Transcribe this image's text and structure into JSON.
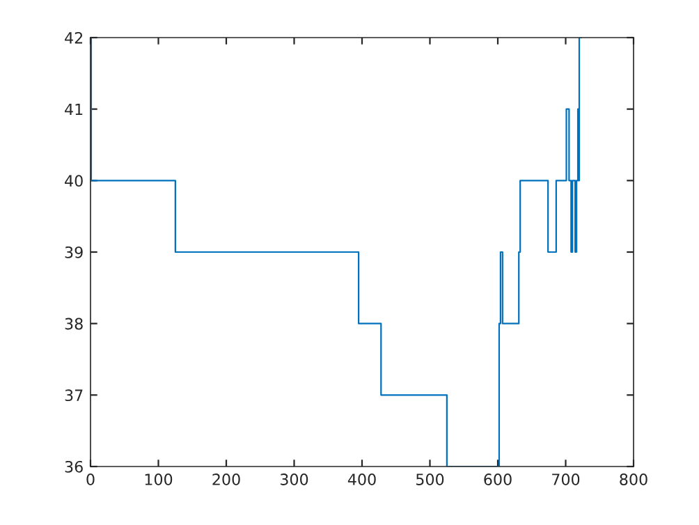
{
  "chart_data": {
    "type": "step",
    "series": [
      {
        "color": "#0072bd",
        "x": [
          0,
          1,
          125,
          395,
          428,
          525,
          602,
          604,
          607,
          608,
          631,
          633,
          674,
          686,
          700,
          701,
          705,
          708,
          710,
          714,
          716,
          718,
          719,
          720,
          723
        ],
        "values": [
          42,
          40,
          39,
          38,
          37,
          36,
          38,
          39,
          38,
          38,
          39,
          40,
          39,
          40,
          40,
          41,
          40,
          39,
          40,
          39,
          40,
          41,
          40,
          42,
          42
        ]
      }
    ],
    "xlim": [
      0,
      800
    ],
    "ylim": [
      36,
      42
    ],
    "xticks": [
      0,
      100,
      200,
      300,
      400,
      500,
      600,
      700,
      800
    ],
    "yticks": [
      36,
      37,
      38,
      39,
      40,
      41,
      42
    ],
    "grid": false
  }
}
